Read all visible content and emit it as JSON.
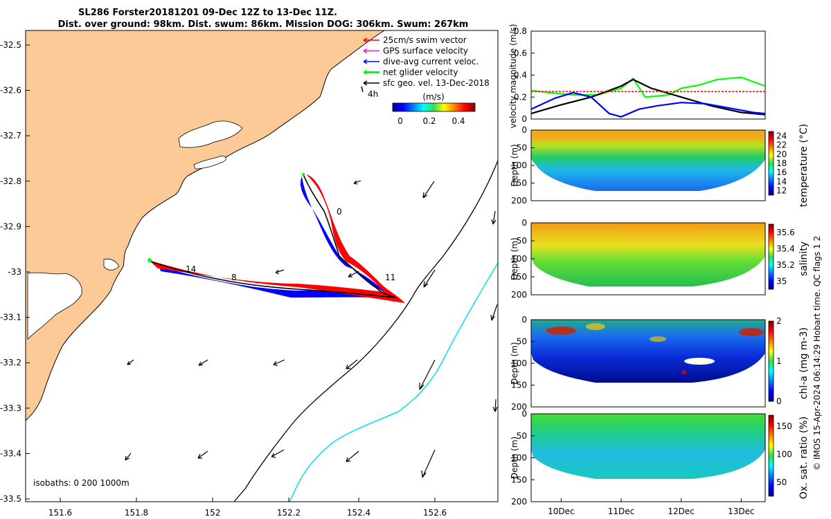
{
  "title_line1": "SL286 Forster20181201 09-Dec 12Z to 13-Dec 11Z.",
  "title_line2": "Dist. over ground: 98km. Dist. swum: 86km. Mission DOG: 306km. Swum: 267km",
  "credit": "© IMOS 15-Apr-2024 06:14:29 Hobart time. QC flags 1  2",
  "colors": {
    "land": "#fcca96",
    "track_red": "#ff0000",
    "track_blue": "#0000ff",
    "net": "#00ff00",
    "cyan": "#00e5e5"
  },
  "legend": {
    "items": [
      {
        "label": "25cm/s swim vector",
        "color": "#ff0000"
      },
      {
        "label": "GPS surface velocity",
        "color": "#ff00ff"
      },
      {
        "label": "dive-avg current veloc.",
        "color": "#0000ff"
      },
      {
        "label": "net glider velocity",
        "color": "#00ff00"
      },
      {
        "label": "sfc geo. vel. 13-Dec-2018",
        "color": "#000000"
      }
    ],
    "scale_label": "4h",
    "colorbar_title": "(m/s)",
    "colorbar_ticks": [
      "0",
      "0.2",
      "0.4"
    ]
  },
  "map": {
    "xticks": [
      "151.6",
      "151.8",
      "152",
      "152.2",
      "152.4",
      "152.6"
    ],
    "yticks": [
      "-32.5",
      "-32.6",
      "-32.7",
      "-32.8",
      "-32.9",
      "-33",
      "-33.1",
      "-33.2",
      "-33.3",
      "-33.4",
      "-33.5"
    ],
    "isobaths": "isobaths: 0   200  1000m",
    "day_labels": [
      "0",
      "11",
      "14",
      "8"
    ]
  },
  "chart_data": [
    {
      "type": "line",
      "ylabel": "velocity magnitude (m/s)",
      "ylim": [
        0,
        0.8
      ],
      "yticks": [
        "0",
        "0.2",
        "0.4",
        "0.6",
        "0.8"
      ],
      "xticks": [
        "10Dec",
        "11Dec",
        "12Dec",
        "13Dec"
      ],
      "series": [
        {
          "color": "#00ff00",
          "x": [
            9.5,
            9.8,
            10.2,
            10.6,
            11.0,
            11.2,
            11.4,
            11.8,
            12.0,
            12.3,
            12.6,
            13.0,
            13.4
          ],
          "values": [
            0.26,
            0.24,
            0.22,
            0.22,
            0.28,
            0.37,
            0.2,
            0.22,
            0.28,
            0.31,
            0.36,
            0.38,
            0.3
          ]
        },
        {
          "color": "#000000",
          "x": [
            9.5,
            10.0,
            10.5,
            11.0,
            11.2,
            11.5,
            12.0,
            12.5,
            13.0,
            13.4
          ],
          "values": [
            0.05,
            0.13,
            0.2,
            0.3,
            0.36,
            0.28,
            0.2,
            0.12,
            0.06,
            0.04
          ]
        },
        {
          "color": "#0000ff",
          "x": [
            9.5,
            9.9,
            10.2,
            10.5,
            10.8,
            11.0,
            11.3,
            11.6,
            12.0,
            12.4,
            12.8,
            13.2,
            13.4
          ],
          "values": [
            0.09,
            0.19,
            0.24,
            0.2,
            0.05,
            0.02,
            0.09,
            0.12,
            0.15,
            0.14,
            0.1,
            0.06,
            0.05
          ]
        },
        {
          "color": "#ff0000",
          "x": [
            9.5,
            13.4
          ],
          "values": [
            0.25,
            0.25
          ]
        }
      ]
    },
    {
      "type": "heatmap",
      "ylabel": "Depth (m)",
      "colorbar_label": "temperature (°C)",
      "yticks": [
        "0",
        "50",
        "100",
        "150",
        "200"
      ],
      "colorbar_ticks": [
        "12",
        "14",
        "16",
        "18",
        "20",
        "22",
        "24"
      ],
      "crange": [
        11,
        25
      ]
    },
    {
      "type": "heatmap",
      "ylabel": "Depth (m)",
      "colorbar_label": "salinity",
      "yticks": [
        "0",
        "50",
        "100",
        "150",
        "200"
      ],
      "colorbar_ticks": [
        "35",
        "35.2",
        "35.4",
        "35.6"
      ],
      "crange": [
        34.9,
        35.7
      ]
    },
    {
      "type": "heatmap",
      "ylabel": "Depth (m)",
      "colorbar_label": "chl-a (mg m-3)",
      "yticks": [
        "0",
        "50",
        "100",
        "150",
        "200"
      ],
      "colorbar_ticks": [
        "0",
        "1",
        "2"
      ],
      "crange": [
        0,
        2
      ]
    },
    {
      "type": "heatmap",
      "ylabel": "Depth (m)",
      "colorbar_label": "Ox. sat. ratio (%)",
      "yticks": [
        "0",
        "50",
        "100",
        "150",
        "200"
      ],
      "colorbar_ticks": [
        "50",
        "100",
        "150"
      ],
      "crange": [
        25,
        170
      ]
    }
  ]
}
